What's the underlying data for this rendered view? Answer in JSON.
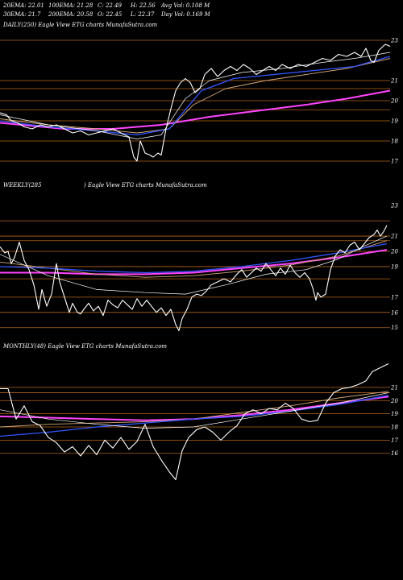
{
  "header": {
    "row1": [
      {
        "key": "ema20",
        "text": "20EMA: 22.01"
      },
      {
        "key": "ema100",
        "text": "100EMA: 21.28"
      },
      {
        "key": "close",
        "text": "C: 22.49"
      },
      {
        "key": "high",
        "text": "H: 22.56"
      },
      {
        "key": "avgvol",
        "text": "Avg Vol: 0.108 M"
      }
    ],
    "row2": [
      {
        "key": "ema30",
        "text": "30EMA: 21.7"
      },
      {
        "key": "ema200",
        "text": "200EMA: 20.58"
      },
      {
        "key": "open",
        "text": "O: 22.45"
      },
      {
        "key": "low",
        "text": "L: 22.37"
      },
      {
        "key": "dayvol",
        "text": "Day Vol: 0.169 M"
      }
    ]
  },
  "panels": {
    "daily": {
      "label": "DAILY(250) Eagle  View ETG charts MunafaSutra.com"
    },
    "weekly": {
      "label_left": "WEEKLY(285",
      "label_right": ") Eagle  View ETG charts MunafaSutra.com"
    },
    "monthly": {
      "label": "MONTHLY(48) Eagle  View ETG charts MunafaSutra.com"
    }
  },
  "colors": {
    "background": "#000000",
    "price": "#ffffff",
    "gridline": "#b5651d",
    "ema_fast": "#ffffff",
    "ema_mid": "#d2a679",
    "ema_slow": "#3355ff",
    "ema_long": "#ff44ff"
  },
  "chart_data": [
    {
      "type": "line",
      "id": "daily",
      "title": "DAILY(250) Eagle  View ETG charts MunafaSutra.com",
      "ylim": [
        16.2,
        23.4
      ],
      "yticks": [
        17,
        18,
        19,
        20,
        21,
        23
      ],
      "hgrid": [
        17,
        18,
        19,
        19.55,
        20,
        20.6,
        21,
        23
      ],
      "x_count": 250,
      "price_points": [
        [
          0,
          19.4
        ],
        [
          8,
          19.3
        ],
        [
          14,
          19.0
        ],
        [
          22,
          18.9
        ],
        [
          30,
          18.7
        ],
        [
          40,
          18.6
        ],
        [
          50,
          18.8
        ],
        [
          60,
          18.7
        ],
        [
          70,
          18.8
        ],
        [
          80,
          18.6
        ],
        [
          90,
          18.4
        ],
        [
          100,
          18.5
        ],
        [
          110,
          18.3
        ],
        [
          120,
          18.4
        ],
        [
          130,
          18.5
        ],
        [
          140,
          18.6
        ],
        [
          150,
          18.4
        ],
        [
          160,
          18.2
        ],
        [
          166,
          17.2
        ],
        [
          170,
          17.0
        ],
        [
          174,
          18.0
        ],
        [
          180,
          17.4
        ],
        [
          186,
          17.3
        ],
        [
          190,
          17.2
        ],
        [
          196,
          17.4
        ],
        [
          200,
          17.3
        ],
        [
          206,
          18.6
        ],
        [
          212,
          19.6
        ],
        [
          218,
          20.5
        ],
        [
          224,
          20.9
        ],
        [
          230,
          21.1
        ],
        [
          236,
          20.9
        ],
        [
          242,
          20.4
        ],
        [
          248,
          20.6
        ],
        [
          254,
          21.3
        ],
        [
          262,
          21.6
        ],
        [
          270,
          21.2
        ],
        [
          278,
          21.5
        ],
        [
          286,
          21.7
        ],
        [
          294,
          21.5
        ],
        [
          302,
          21.8
        ],
        [
          310,
          21.6
        ],
        [
          318,
          21.3
        ],
        [
          326,
          21.5
        ],
        [
          334,
          21.7
        ],
        [
          342,
          21.5
        ],
        [
          350,
          21.8
        ],
        [
          360,
          21.6
        ],
        [
          370,
          21.8
        ],
        [
          380,
          21.7
        ],
        [
          390,
          21.9
        ],
        [
          400,
          22.1
        ],
        [
          410,
          22.0
        ],
        [
          420,
          22.3
        ],
        [
          430,
          22.2
        ],
        [
          440,
          22.4
        ],
        [
          448,
          22.2
        ],
        [
          454,
          22.6
        ],
        [
          460,
          22.0
        ],
        [
          464,
          21.9
        ],
        [
          470,
          22.5
        ],
        [
          478,
          22.8
        ],
        [
          484,
          22.7
        ]
      ],
      "ema_fast_points": [
        [
          0,
          19.3
        ],
        [
          60,
          18.8
        ],
        [
          120,
          18.5
        ],
        [
          170,
          18.1
        ],
        [
          200,
          18.3
        ],
        [
          230,
          20.1
        ],
        [
          260,
          21.0
        ],
        [
          300,
          21.4
        ],
        [
          350,
          21.6
        ],
        [
          400,
          21.9
        ],
        [
          440,
          22.1
        ],
        [
          484,
          22.4
        ]
      ],
      "ema_mid_points": [
        [
          0,
          19.1
        ],
        [
          60,
          18.8
        ],
        [
          120,
          18.6
        ],
        [
          170,
          18.4
        ],
        [
          210,
          18.6
        ],
        [
          240,
          19.8
        ],
        [
          280,
          20.6
        ],
        [
          330,
          21.0
        ],
        [
          380,
          21.3
        ],
        [
          430,
          21.6
        ],
        [
          484,
          22.1
        ]
      ],
      "ema_slow_points": [
        [
          0,
          19.0
        ],
        [
          60,
          18.7
        ],
        [
          120,
          18.5
        ],
        [
          170,
          18.3
        ],
        [
          210,
          18.6
        ],
        [
          250,
          20.5
        ],
        [
          290,
          21.1
        ],
        [
          340,
          21.3
        ],
        [
          390,
          21.5
        ],
        [
          440,
          21.7
        ],
        [
          484,
          22.2
        ]
      ],
      "ema_long_points": [
        [
          0,
          18.9
        ],
        [
          80,
          18.6
        ],
        [
          140,
          18.6
        ],
        [
          200,
          18.8
        ],
        [
          260,
          19.2
        ],
        [
          320,
          19.5
        ],
        [
          380,
          19.8
        ],
        [
          430,
          20.1
        ],
        [
          484,
          20.5
        ]
      ]
    },
    {
      "type": "line",
      "id": "weekly",
      "title": "WEEKLY(285 ) Eagle  View ETG charts MunafaSutra.com",
      "ylim": [
        14.3,
        23.8
      ],
      "yticks": [
        15,
        16,
        17,
        19,
        20,
        21,
        23
      ],
      "hgrid": [
        15,
        16,
        17,
        18.2,
        19,
        20,
        20.7,
        21,
        22
      ],
      "x_count": 285,
      "price_points": [
        [
          0,
          20.3
        ],
        [
          6,
          19.9
        ],
        [
          10,
          20.0
        ],
        [
          14,
          19.2
        ],
        [
          18,
          19.6
        ],
        [
          24,
          20.6
        ],
        [
          30,
          19.4
        ],
        [
          36,
          18.8
        ],
        [
          42,
          17.8
        ],
        [
          48,
          16.2
        ],
        [
          52,
          17.5
        ],
        [
          58,
          16.4
        ],
        [
          64,
          17.2
        ],
        [
          70,
          19.2
        ],
        [
          74,
          18.0
        ],
        [
          80,
          17.0
        ],
        [
          86,
          16.0
        ],
        [
          90,
          16.6
        ],
        [
          96,
          16.0
        ],
        [
          100,
          15.9
        ],
        [
          104,
          16.2
        ],
        [
          110,
          16.6
        ],
        [
          116,
          16.1
        ],
        [
          122,
          16.4
        ],
        [
          128,
          15.8
        ],
        [
          134,
          16.8
        ],
        [
          140,
          16.5
        ],
        [
          146,
          16.3
        ],
        [
          152,
          16.8
        ],
        [
          158,
          16.5
        ],
        [
          164,
          16.2
        ],
        [
          170,
          16.9
        ],
        [
          176,
          16.4
        ],
        [
          182,
          16.8
        ],
        [
          188,
          16.4
        ],
        [
          194,
          16.0
        ],
        [
          200,
          16.3
        ],
        [
          206,
          15.8
        ],
        [
          212,
          16.2
        ],
        [
          218,
          15.2
        ],
        [
          222,
          14.8
        ],
        [
          226,
          15.6
        ],
        [
          232,
          16.2
        ],
        [
          238,
          17.0
        ],
        [
          244,
          17.2
        ],
        [
          250,
          17.1
        ],
        [
          256,
          17.4
        ],
        [
          262,
          17.8
        ],
        [
          270,
          18.0
        ],
        [
          278,
          18.2
        ],
        [
          286,
          18.0
        ],
        [
          294,
          18.5
        ],
        [
          300,
          18.8
        ],
        [
          306,
          18.3
        ],
        [
          312,
          18.6
        ],
        [
          318,
          18.9
        ],
        [
          324,
          18.7
        ],
        [
          330,
          19.2
        ],
        [
          336,
          18.8
        ],
        [
          342,
          18.4
        ],
        [
          348,
          18.9
        ],
        [
          354,
          18.5
        ],
        [
          360,
          19.1
        ],
        [
          366,
          18.6
        ],
        [
          372,
          18.3
        ],
        [
          378,
          18.6
        ],
        [
          384,
          18.2
        ],
        [
          388,
          17.6
        ],
        [
          392,
          16.8
        ],
        [
          394,
          17.3
        ],
        [
          398,
          17.0
        ],
        [
          404,
          17.2
        ],
        [
          410,
          18.8
        ],
        [
          416,
          19.7
        ],
        [
          422,
          20.1
        ],
        [
          428,
          19.9
        ],
        [
          434,
          20.4
        ],
        [
          440,
          20.6
        ],
        [
          446,
          20.1
        ],
        [
          452,
          20.5
        ],
        [
          458,
          20.9
        ],
        [
          464,
          21.1
        ],
        [
          468,
          21.4
        ],
        [
          472,
          21.0
        ],
        [
          476,
          21.3
        ],
        [
          480,
          21.7
        ]
      ],
      "ema_fast_points": [
        [
          0,
          19.8
        ],
        [
          60,
          18.4
        ],
        [
          120,
          17.5
        ],
        [
          180,
          17.3
        ],
        [
          230,
          17.2
        ],
        [
          280,
          17.8
        ],
        [
          330,
          18.5
        ],
        [
          380,
          18.8
        ],
        [
          420,
          19.5
        ],
        [
          450,
          20.3
        ],
        [
          480,
          21.0
        ]
      ],
      "ema_mid_points": [
        [
          0,
          19.3
        ],
        [
          60,
          18.9
        ],
        [
          120,
          18.5
        ],
        [
          180,
          18.3
        ],
        [
          240,
          18.4
        ],
        [
          300,
          18.7
        ],
        [
          360,
          19.1
        ],
        [
          420,
          19.7
        ],
        [
          480,
          20.7
        ]
      ],
      "ema_slow_points": [
        [
          0,
          19.0
        ],
        [
          60,
          18.9
        ],
        [
          120,
          18.7
        ],
        [
          180,
          18.6
        ],
        [
          240,
          18.7
        ],
        [
          300,
          19.0
        ],
        [
          360,
          19.4
        ],
        [
          420,
          19.9
        ],
        [
          480,
          20.5
        ]
      ],
      "ema_long_points": [
        [
          0,
          18.6
        ],
        [
          60,
          18.6
        ],
        [
          120,
          18.5
        ],
        [
          180,
          18.5
        ],
        [
          240,
          18.6
        ],
        [
          300,
          18.9
        ],
        [
          360,
          19.2
        ],
        [
          420,
          19.6
        ],
        [
          480,
          20.1
        ]
      ]
    },
    {
      "type": "line",
      "id": "monthly",
      "title": "MONTHLY(48) Eagle  View ETG charts MunafaSutra.com",
      "ylim": [
        12.5,
        23.5
      ],
      "yticks": [
        16,
        17,
        18,
        19,
        20,
        21
      ],
      "hgrid": [
        16,
        17,
        18,
        19,
        20,
        20.6,
        21
      ],
      "x_count": 48,
      "price_points": [
        [
          0,
          20.9
        ],
        [
          10,
          20.9
        ],
        [
          20,
          18.6
        ],
        [
          30,
          19.6
        ],
        [
          40,
          18.4
        ],
        [
          50,
          18.1
        ],
        [
          60,
          17.2
        ],
        [
          70,
          16.8
        ],
        [
          80,
          16.1
        ],
        [
          90,
          16.5
        ],
        [
          100,
          15.8
        ],
        [
          110,
          16.6
        ],
        [
          120,
          15.9
        ],
        [
          130,
          17.0
        ],
        [
          140,
          16.4
        ],
        [
          150,
          17.2
        ],
        [
          160,
          16.3
        ],
        [
          170,
          16.9
        ],
        [
          180,
          18.2
        ],
        [
          190,
          16.5
        ],
        [
          200,
          15.5
        ],
        [
          210,
          14.6
        ],
        [
          218,
          14.0
        ],
        [
          226,
          16.2
        ],
        [
          234,
          17.2
        ],
        [
          244,
          17.8
        ],
        [
          254,
          18.0
        ],
        [
          264,
          17.6
        ],
        [
          274,
          17.0
        ],
        [
          284,
          17.6
        ],
        [
          294,
          18.1
        ],
        [
          304,
          19.0
        ],
        [
          314,
          19.3
        ],
        [
          324,
          19.0
        ],
        [
          334,
          19.4
        ],
        [
          344,
          19.3
        ],
        [
          354,
          19.8
        ],
        [
          364,
          19.4
        ],
        [
          374,
          18.6
        ],
        [
          384,
          18.4
        ],
        [
          394,
          18.5
        ],
        [
          404,
          19.8
        ],
        [
          414,
          20.6
        ],
        [
          424,
          20.9
        ],
        [
          434,
          21.0
        ],
        [
          444,
          21.2
        ],
        [
          454,
          21.5
        ],
        [
          462,
          22.2
        ],
        [
          472,
          22.5
        ],
        [
          482,
          22.8
        ]
      ],
      "ema_fast_points": [
        [
          0,
          19.3
        ],
        [
          60,
          18.6
        ],
        [
          120,
          18.2
        ],
        [
          180,
          17.9
        ],
        [
          240,
          18.0
        ],
        [
          300,
          18.6
        ],
        [
          360,
          19.2
        ],
        [
          420,
          19.8
        ],
        [
          482,
          20.6
        ]
      ],
      "ema_mid_points": [
        [
          0,
          18.0
        ],
        [
          60,
          18.2
        ],
        [
          120,
          18.3
        ],
        [
          180,
          18.4
        ],
        [
          240,
          18.6
        ],
        [
          300,
          19.1
        ],
        [
          360,
          19.6
        ],
        [
          420,
          20.2
        ],
        [
          482,
          20.7
        ]
      ],
      "ema_slow_points": [
        [
          0,
          17.3
        ],
        [
          60,
          17.6
        ],
        [
          120,
          18.0
        ],
        [
          180,
          18.3
        ],
        [
          240,
          18.6
        ],
        [
          300,
          18.8
        ],
        [
          360,
          19.2
        ],
        [
          420,
          19.7
        ],
        [
          482,
          20.4
        ]
      ],
      "ema_long_points": [
        [
          0,
          18.8
        ],
        [
          60,
          18.7
        ],
        [
          120,
          18.6
        ],
        [
          180,
          18.5
        ],
        [
          240,
          18.6
        ],
        [
          300,
          18.9
        ],
        [
          360,
          19.3
        ],
        [
          420,
          19.8
        ],
        [
          482,
          20.3
        ]
      ]
    }
  ]
}
